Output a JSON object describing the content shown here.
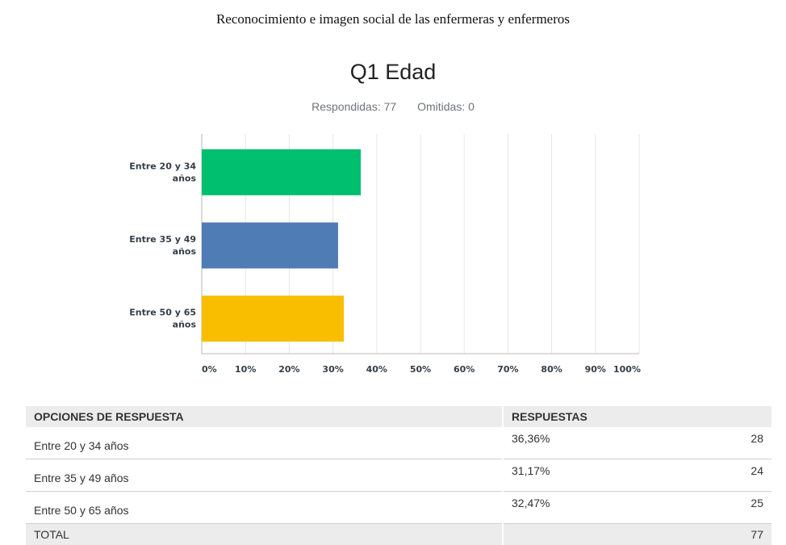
{
  "header": "Reconocimiento e imagen social de las enfermeras y enfermeros",
  "question": {
    "title": "Q1 Edad",
    "answered": "Respondidas: 77",
    "skipped": "Omitidas: 0"
  },
  "chart_data": {
    "type": "bar",
    "orientation": "horizontal",
    "categories": [
      "Entre 20 y 34 años",
      "Entre 35 y 49 años",
      "Entre 50 y 65 años"
    ],
    "category_label_lines": [
      [
        "Entre 20 y 34",
        "años"
      ],
      [
        "Entre 35 y 49",
        "años"
      ],
      [
        "Entre 50 y 65",
        "años"
      ]
    ],
    "values": [
      36.36,
      31.17,
      32.47
    ],
    "colors": [
      "#00bf6f",
      "#507cb6",
      "#f9be00"
    ],
    "xlim": [
      0,
      100
    ],
    "ticks": [
      "0%",
      "10%",
      "20%",
      "30%",
      "40%",
      "50%",
      "60%",
      "70%",
      "80%",
      "90%",
      "100%"
    ],
    "grid": true,
    "legend": "none"
  },
  "table": {
    "headers": [
      "OPCIONES DE RESPUESTA",
      "RESPUESTAS"
    ],
    "rows": [
      {
        "option": "Entre 20 y 34 años",
        "percent": "36,36%",
        "count": "28"
      },
      {
        "option": "Entre 35 y 49 años",
        "percent": "31,17%",
        "count": "24"
      },
      {
        "option": "Entre 50 y 65 años",
        "percent": "32,47%",
        "count": "25"
      }
    ],
    "total_label": "TOTAL",
    "total_count": "77"
  }
}
